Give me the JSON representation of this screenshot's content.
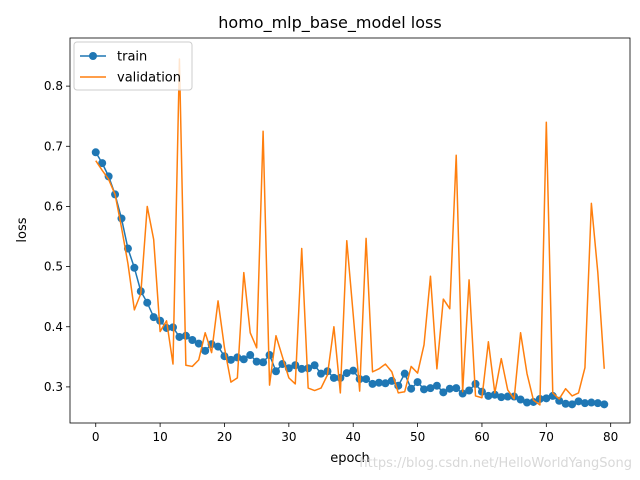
{
  "chart_data": {
    "type": "line",
    "title": "homo_mlp_base_model loss",
    "xlabel": "epoch",
    "ylabel": "loss",
    "xlim": [
      -4,
      83
    ],
    "ylim": [
      0.24,
      0.88
    ],
    "xticks": [
      0,
      10,
      20,
      30,
      40,
      50,
      60,
      70,
      80
    ],
    "yticks": [
      0.3,
      0.4,
      0.5,
      0.6,
      0.7,
      0.8
    ],
    "legend_position": "top-left",
    "series": [
      {
        "name": "train",
        "color": "#1f77b4",
        "marker": "circle",
        "values": [
          0.69,
          0.672,
          0.65,
          0.62,
          0.58,
          0.53,
          0.498,
          0.459,
          0.44,
          0.416,
          0.41,
          0.398,
          0.399,
          0.383,
          0.385,
          0.378,
          0.372,
          0.36,
          0.371,
          0.367,
          0.351,
          0.345,
          0.349,
          0.346,
          0.353,
          0.342,
          0.341,
          0.353,
          0.326,
          0.338,
          0.331,
          0.336,
          0.33,
          0.331,
          0.336,
          0.322,
          0.326,
          0.315,
          0.315,
          0.323,
          0.327,
          0.313,
          0.313,
          0.305,
          0.307,
          0.306,
          0.31,
          0.302,
          0.322,
          0.297,
          0.308,
          0.296,
          0.298,
          0.302,
          0.291,
          0.297,
          0.298,
          0.289,
          0.294,
          0.305,
          0.292,
          0.285,
          0.287,
          0.283,
          0.284,
          0.284,
          0.279,
          0.274,
          0.275,
          0.28,
          0.281,
          0.285,
          0.277,
          0.272,
          0.271,
          0.276,
          0.273,
          0.274,
          0.273,
          0.271
        ]
      },
      {
        "name": "validation",
        "color": "#ff7f0e",
        "marker": "none",
        "values": [
          0.676,
          0.66,
          0.645,
          0.62,
          0.565,
          0.505,
          0.428,
          0.455,
          0.6,
          0.545,
          0.392,
          0.41,
          0.338,
          0.845,
          0.336,
          0.334,
          0.345,
          0.39,
          0.357,
          0.443,
          0.365,
          0.308,
          0.315,
          0.49,
          0.39,
          0.365,
          0.725,
          0.303,
          0.385,
          0.35,
          0.315,
          0.305,
          0.53,
          0.298,
          0.294,
          0.298,
          0.32,
          0.4,
          0.29,
          0.543,
          0.42,
          0.293,
          0.547,
          0.325,
          0.33,
          0.338,
          0.325,
          0.29,
          0.292,
          0.334,
          0.323,
          0.37,
          0.484,
          0.33,
          0.446,
          0.43,
          0.685,
          0.292,
          0.478,
          0.285,
          0.282,
          0.375,
          0.29,
          0.347,
          0.295,
          0.28,
          0.39,
          0.322,
          0.278,
          0.27,
          0.74,
          0.29,
          0.28,
          0.297,
          0.285,
          0.29,
          0.332,
          0.605,
          0.49,
          0.33
        ]
      }
    ]
  },
  "watermark": "https://blog.csdn.net/HelloWorldYangSong"
}
